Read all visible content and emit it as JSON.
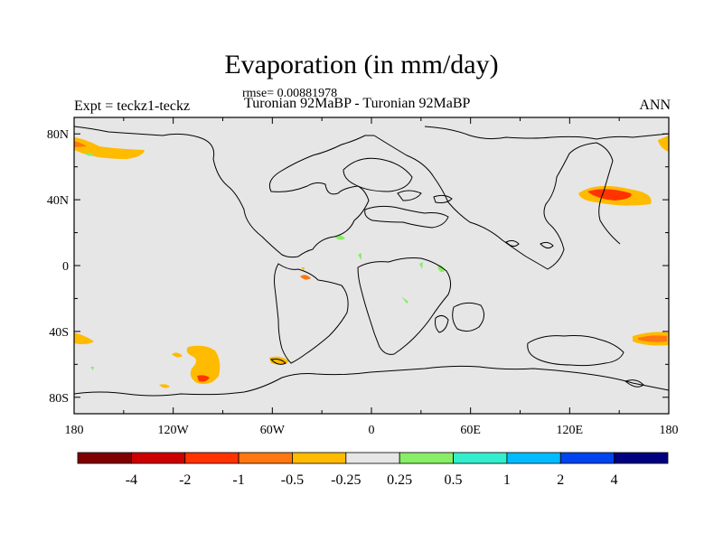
{
  "title": "Evaporation (in mm/day)",
  "rmse": "rmse= 0.00881978",
  "experiment": "Expt = teckz1-teckz",
  "period": "Turonian  92MaBP - Turonian  92MaBP",
  "season": "ANN",
  "map": {
    "background_color": "#e6e6e6",
    "lon_ticks": [
      "180",
      "120W",
      "60W",
      "0",
      "60E",
      "120E",
      "180"
    ],
    "lat_ticks": [
      "80N",
      "40N",
      "0",
      "40S",
      "80S"
    ]
  },
  "colorbar": {
    "colors": [
      "#800000",
      "#cc0000",
      "#ff3300",
      "#ff7711",
      "#ffbb00",
      "#e6e6e6",
      "#88ee66",
      "#33eecc",
      "#00bbff",
      "#0044ee",
      "#000080"
    ],
    "labels": [
      "-4",
      "-2",
      "-1",
      "-0.5",
      "-0.25",
      "0.25",
      "0.5",
      "1",
      "2",
      "4"
    ]
  }
}
